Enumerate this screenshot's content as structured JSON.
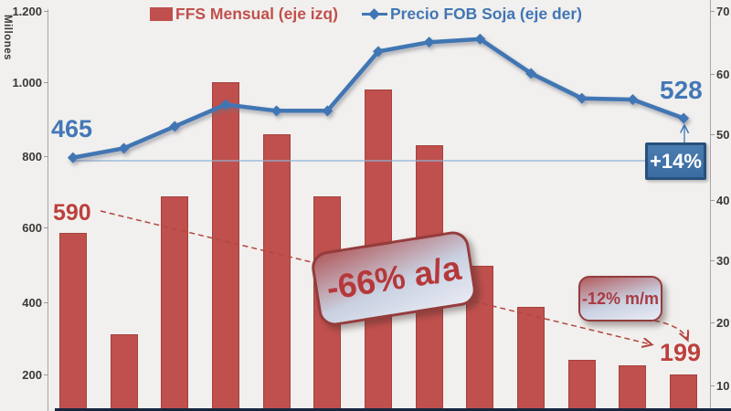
{
  "legend": [
    {
      "label": "FFS Mensual (eje izq)",
      "color": "#c0504d",
      "marker": "square"
    },
    {
      "label": "Precio FOB Soja (eje der)",
      "color": "#4176b4",
      "marker": "line-diamond"
    }
  ],
  "left_axis": {
    "title": "Millones",
    "tick_labels": [
      "1.200",
      "1.000",
      "800",
      "600",
      "400",
      "200"
    ]
  },
  "right_axis": {
    "tick_labels": [
      "70",
      "60",
      "50",
      "40",
      "30",
      "20",
      "10"
    ]
  },
  "annotations": {
    "line_start_value": "465",
    "line_end_value": "528",
    "bar_start_value": "590",
    "bar_end_value": "199",
    "price_change_badge": "+14%",
    "yoy_change_badge": "-66% a/a",
    "mom_change_badge": "-12% m/m"
  },
  "chart_data": {
    "type": "bar",
    "subtype": "combo bar+line, dual axis",
    "n_points": 13,
    "categories": null,
    "series": [
      {
        "name": "FFS Mensual (eje izq)",
        "type": "bar",
        "axis": "left",
        "color": "#c0504d",
        "values": [
          590,
          310,
          690,
          1005,
          860,
          690,
          985,
          830,
          500,
          385,
          240,
          225,
          199
        ]
      },
      {
        "name": "Precio FOB Soja (eje der)",
        "type": "line",
        "axis": "right",
        "color": "#4176b4",
        "values": [
          465,
          480,
          515,
          550,
          540,
          540,
          635,
          650,
          655,
          600,
          560,
          558,
          528
        ]
      }
    ],
    "left_axis": {
      "label": "Millones",
      "ticks": [
        1200,
        1000,
        800,
        600,
        400,
        200
      ],
      "lim": [
        0,
        1200
      ]
    },
    "right_axis": {
      "ticks": [
        70,
        60,
        50,
        40,
        30,
        20,
        10
      ],
      "lim": [
        0,
        70
      ],
      "scale": "line values plotted as value/10"
    },
    "reference_line": {
      "axis": "right",
      "at_line_value": 465
    },
    "annotation_texts": [
      "465",
      "590",
      "528",
      "199",
      "+14%",
      "-66% a/a",
      "-12% m/m"
    ],
    "legend_position": "top",
    "grid": false
  }
}
